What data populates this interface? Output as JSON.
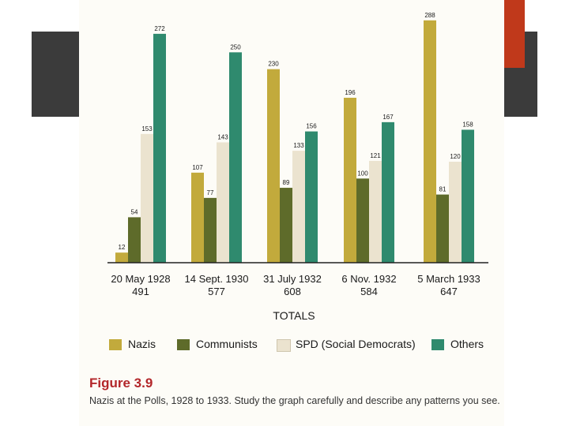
{
  "colors": {
    "nazis": "#c2aa3c",
    "communists": "#5e6b2a",
    "spd": "#ebe3cf",
    "others": "#2f8a6e",
    "figure_title": "#b3262a"
  },
  "chart_data": {
    "type": "bar",
    "categories": [
      "20 May 1928",
      "14 Sept. 1930",
      "31 July 1932",
      "6 Nov. 1932",
      "5 March 1933"
    ],
    "totals": [
      "491",
      "577",
      "608",
      "584",
      "647"
    ],
    "xlabel": "TOTALS",
    "ylabel": "",
    "ylim": [
      0,
      300
    ],
    "grid": false,
    "legend_position": "bottom",
    "series": [
      {
        "name": "Nazis",
        "values": [
          12,
          107,
          230,
          196,
          288
        ]
      },
      {
        "name": "Communists",
        "values": [
          54,
          77,
          89,
          100,
          81
        ]
      },
      {
        "name": "SPD (Social Democrats)",
        "values": [
          153,
          143,
          133,
          121,
          120
        ]
      },
      {
        "name": "Others",
        "values": [
          272,
          250,
          156,
          167,
          158
        ]
      }
    ]
  },
  "legend": {
    "items": [
      {
        "label": "Nazis"
      },
      {
        "label": "Communists"
      },
      {
        "label": "SPD (Social Democrats)"
      },
      {
        "label": "Others"
      }
    ]
  },
  "figure": {
    "title": "Figure 3.9",
    "caption": "Nazis at the Polls, 1928 to 1933. Study the graph carefully and describe any patterns you see."
  }
}
